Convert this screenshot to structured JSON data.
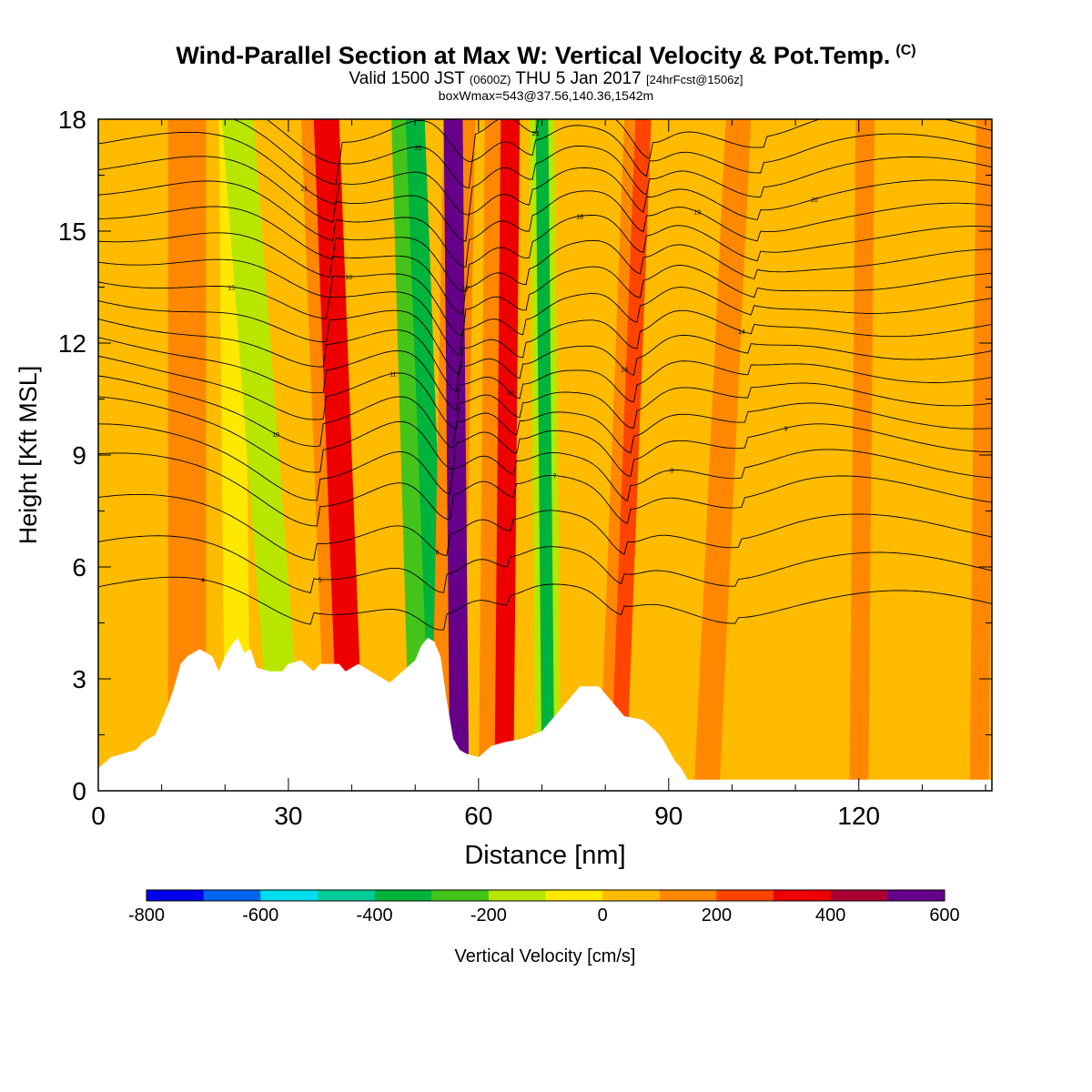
{
  "title": {
    "main": "Wind-Parallel Section at Max W: Vertical Velocity & Pot.Temp.",
    "tag": "(C)",
    "valid_prefix": "Valid 1500 JST",
    "valid_zulu": "(0600Z)",
    "valid_date": "THU 5 Jan 2017",
    "valid_fcst": "[24hrFcst@1506z]",
    "boxinfo": "boxWmax=543@37.56,140.36,1542m"
  },
  "colorbar": {
    "label": "Vertical Velocity [cm/s]",
    "ticks": [
      "-800",
      "-600",
      "-400",
      "-200",
      "0",
      "200",
      "400",
      "600"
    ],
    "bins": [
      {
        "from": -800,
        "to": -700,
        "color": "#0000ee"
      },
      {
        "from": -700,
        "to": -600,
        "color": "#0066ee"
      },
      {
        "from": -600,
        "to": -500,
        "color": "#00ddee"
      },
      {
        "from": -500,
        "to": -400,
        "color": "#00cc99"
      },
      {
        "from": -400,
        "to": -300,
        "color": "#00b33c"
      },
      {
        "from": -300,
        "to": -200,
        "color": "#44c41a"
      },
      {
        "from": -200,
        "to": -100,
        "color": "#b8e600"
      },
      {
        "from": -100,
        "to": 0,
        "color": "#ffe800"
      },
      {
        "from": 0,
        "to": 100,
        "color": "#ffbb00"
      },
      {
        "from": 100,
        "to": 200,
        "color": "#ff8800"
      },
      {
        "from": 200,
        "to": 300,
        "color": "#ff4400"
      },
      {
        "from": 300,
        "to": 400,
        "color": "#ee0000"
      },
      {
        "from": 400,
        "to": 500,
        "color": "#aa0033"
      },
      {
        "from": 500,
        "to": 600,
        "color": "#660088"
      }
    ]
  },
  "chart_data": {
    "type": "heatmap",
    "xlabel": "Distance [nm]",
    "ylabel": "Height [Kft MSL]",
    "xlim": [
      0,
      141
    ],
    "ylim": [
      0,
      18
    ],
    "xticks": [
      "0",
      "30",
      "60",
      "90",
      "120"
    ],
    "yticks": [
      "0",
      "3",
      "6",
      "9",
      "12",
      "15",
      "18"
    ],
    "background_value": 50,
    "bands": [
      {
        "x_bottom": 2,
        "x_top": 3,
        "width": 6,
        "value": 60
      },
      {
        "x_bottom": 14,
        "x_top": 14,
        "width": 6,
        "value": 120
      },
      {
        "x_bottom": 22,
        "x_top": 21,
        "width": 4,
        "value": -50
      },
      {
        "x_bottom": 30,
        "x_top": 22,
        "width": 5,
        "value": -180
      },
      {
        "x_bottom": 38,
        "x_top": 34,
        "width": 4,
        "value": 150
      },
      {
        "x_bottom": 40,
        "x_top": 36,
        "width": 4,
        "value": 300
      },
      {
        "x_bottom": 51,
        "x_top": 48,
        "width": 3.5,
        "value": -230
      },
      {
        "x_bottom": 54,
        "x_top": 50,
        "width": 3,
        "value": -380
      },
      {
        "x_bottom": 55,
        "x_top": 57,
        "width": 5,
        "value": 180
      },
      {
        "x_bottom": 57,
        "x_top": 56,
        "width": 3,
        "value": 520
      },
      {
        "x_bottom": 62,
        "x_top": 63,
        "width": 4,
        "value": 120
      },
      {
        "x_bottom": 64,
        "x_top": 65,
        "width": 3,
        "value": 300
      },
      {
        "x_bottom": 71,
        "x_top": 70,
        "width": 4,
        "value": -180
      },
      {
        "x_bottom": 71,
        "x_top": 70,
        "width": 2,
        "value": -330
      },
      {
        "x_bottom": 81,
        "x_top": 85,
        "width": 4,
        "value": 140
      },
      {
        "x_bottom": 82,
        "x_top": 86,
        "width": 2.5,
        "value": 290
      },
      {
        "x_bottom": 96,
        "x_top": 101,
        "width": 4,
        "value": 120
      },
      {
        "x_bottom": 108,
        "x_top": 110,
        "width": 5,
        "value": 60
      },
      {
        "x_bottom": 120,
        "x_top": 121,
        "width": 3,
        "value": 130
      },
      {
        "x_bottom": 130,
        "x_top": 132,
        "width": 4,
        "value": 60
      },
      {
        "x_bottom": 139,
        "x_top": 140,
        "width": 3,
        "value": 130
      }
    ],
    "terrain": [
      [
        0,
        0.6
      ],
      [
        2,
        0.9
      ],
      [
        6,
        1.1
      ],
      [
        7,
        1.3
      ],
      [
        9,
        1.5
      ],
      [
        10,
        1.9
      ],
      [
        11,
        2.3
      ],
      [
        12,
        2.8
      ],
      [
        13,
        3.4
      ],
      [
        14,
        3.6
      ],
      [
        16,
        3.8
      ],
      [
        18,
        3.6
      ],
      [
        19,
        3.2
      ],
      [
        20,
        3.6
      ],
      [
        21,
        3.9
      ],
      [
        22,
        4.1
      ],
      [
        23,
        3.7
      ],
      [
        24,
        3.8
      ],
      [
        25,
        3.3
      ],
      [
        27,
        3.2
      ],
      [
        29,
        3.2
      ],
      [
        30,
        3.4
      ],
      [
        32,
        3.5
      ],
      [
        34,
        3.2
      ],
      [
        35,
        3.4
      ],
      [
        38,
        3.4
      ],
      [
        39,
        3.2
      ],
      [
        41,
        3.4
      ],
      [
        43,
        3.2
      ],
      [
        46,
        2.9
      ],
      [
        48,
        3.2
      ],
      [
        50,
        3.5
      ],
      [
        51,
        3.9
      ],
      [
        52,
        4.1
      ],
      [
        53,
        4.0
      ],
      [
        54,
        3.6
      ],
      [
        55,
        2.4
      ],
      [
        56,
        1.4
      ],
      [
        57,
        1.1
      ],
      [
        58,
        1.0
      ],
      [
        60,
        0.9
      ],
      [
        62,
        1.2
      ],
      [
        64,
        1.3
      ],
      [
        67,
        1.4
      ],
      [
        70,
        1.6
      ],
      [
        72,
        2.0
      ],
      [
        74,
        2.4
      ],
      [
        76,
        2.8
      ],
      [
        79,
        2.8
      ],
      [
        81,
        2.4
      ],
      [
        83,
        2.0
      ],
      [
        86,
        1.9
      ],
      [
        88,
        1.6
      ],
      [
        89,
        1.4
      ],
      [
        90,
        1.1
      ],
      [
        91,
        0.8
      ],
      [
        92,
        0.6
      ],
      [
        93,
        0.3
      ],
      [
        96,
        0.3
      ],
      [
        141,
        0.3
      ]
    ],
    "theta_lines": [
      {
        "base": 5.0,
        "label": "4"
      },
      {
        "base": 6.0,
        "label": "5"
      },
      {
        "base": 7.0,
        "label": "6"
      },
      {
        "base": 8.0,
        "label": "7"
      },
      {
        "base": 8.7,
        "label": "8"
      },
      {
        "base": 9.4,
        "label": "9"
      },
      {
        "base": 10.0,
        "label": "10"
      },
      {
        "base": 10.6,
        "label": "11"
      },
      {
        "base": 11.2,
        "label": "12"
      },
      {
        "base": 11.8,
        "label": "13"
      },
      {
        "base": 12.4,
        "label": "14"
      },
      {
        "base": 13.0,
        "label": "15"
      },
      {
        "base": 13.6,
        "label": "16"
      },
      {
        "base": 14.2,
        "label": "17"
      },
      {
        "base": 14.8,
        "label": "18"
      },
      {
        "base": 15.4,
        "label": "19"
      },
      {
        "base": 16.0,
        "label": "20"
      },
      {
        "base": 16.6,
        "label": "21"
      },
      {
        "base": 17.2,
        "label": "22"
      },
      {
        "base": 17.8,
        "label": "23"
      }
    ]
  }
}
